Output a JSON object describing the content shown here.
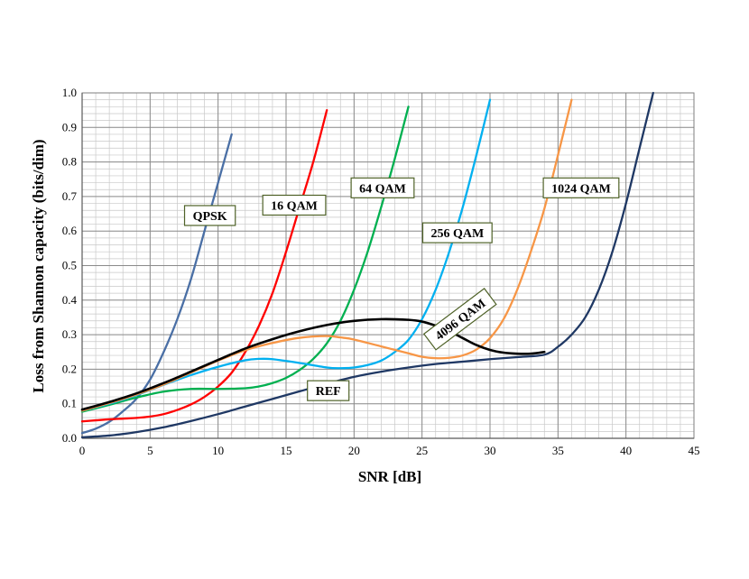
{
  "chart_data": {
    "type": "line",
    "title": "",
    "xlabel": "SNR [dB]",
    "ylabel": "Loss from Shannon capacity (bits/dim)",
    "xlim": [
      0,
      45
    ],
    "ylim": [
      0,
      1.0
    ],
    "x_ticks": [
      0,
      5,
      10,
      15,
      20,
      25,
      30,
      35,
      40,
      45
    ],
    "y_ticks": [
      "0.0",
      "0.1",
      "0.2",
      "0.3",
      "0.4",
      "0.5",
      "0.6",
      "0.7",
      "0.8",
      "0.9",
      "1.0"
    ],
    "x_minor_step": 1,
    "y_minor_step": 0.02,
    "grid": true,
    "series": [
      {
        "name": "REF",
        "color": "#1F3864",
        "x": [
          0,
          2,
          4,
          6,
          8,
          10,
          12,
          14,
          16,
          18,
          20,
          22,
          24,
          26,
          28,
          30,
          32,
          34,
          35,
          36,
          37,
          38,
          39,
          40,
          41,
          42
        ],
        "y": [
          0.003,
          0.008,
          0.018,
          0.032,
          0.05,
          0.07,
          0.092,
          0.114,
          0.136,
          0.158,
          0.178,
          0.193,
          0.205,
          0.215,
          0.222,
          0.229,
          0.235,
          0.242,
          0.265,
          0.3,
          0.35,
          0.43,
          0.54,
          0.68,
          0.84,
          1.0
        ]
      },
      {
        "name": "QPSK",
        "color": "#4A6FA5",
        "x": [
          0,
          1,
          2,
          3,
          4,
          5,
          6,
          7,
          8,
          9,
          10,
          11
        ],
        "y": [
          0.015,
          0.028,
          0.048,
          0.078,
          0.115,
          0.17,
          0.25,
          0.345,
          0.46,
          0.6,
          0.74,
          0.88
        ]
      },
      {
        "name": "16 QAM",
        "color": "#FF0000",
        "x": [
          0,
          1,
          2,
          3,
          4,
          5,
          6,
          7,
          8,
          9,
          10,
          11,
          12,
          13,
          14,
          15,
          16,
          17,
          18
        ],
        "y": [
          0.049,
          0.052,
          0.055,
          0.057,
          0.059,
          0.063,
          0.07,
          0.082,
          0.098,
          0.12,
          0.15,
          0.19,
          0.25,
          0.325,
          0.42,
          0.54,
          0.67,
          0.8,
          0.95
        ]
      },
      {
        "name": "64 QAM",
        "color": "#00B050",
        "x": [
          0,
          2,
          4,
          6,
          8,
          10,
          12,
          13,
          14,
          15,
          16,
          17,
          18,
          19,
          20,
          21,
          22,
          23,
          24
        ],
        "y": [
          0.077,
          0.097,
          0.118,
          0.135,
          0.143,
          0.143,
          0.145,
          0.15,
          0.16,
          0.175,
          0.198,
          0.23,
          0.275,
          0.34,
          0.43,
          0.54,
          0.67,
          0.81,
          0.96
        ]
      },
      {
        "name": "256 QAM",
        "color": "#00B0F0",
        "x": [
          0,
          2,
          4,
          6,
          8,
          10,
          12,
          13,
          14,
          16,
          18,
          19,
          20,
          21,
          22,
          23,
          24,
          25,
          26,
          27,
          28,
          29,
          30
        ],
        "y": [
          0.08,
          0.1,
          0.125,
          0.155,
          0.183,
          0.207,
          0.226,
          0.23,
          0.229,
          0.218,
          0.205,
          0.203,
          0.205,
          0.212,
          0.225,
          0.25,
          0.285,
          0.345,
          0.43,
          0.54,
          0.67,
          0.82,
          0.98
        ]
      },
      {
        "name": "1024 QAM",
        "color": "#F79646",
        "x": [
          0,
          2,
          4,
          6,
          8,
          10,
          12,
          14,
          16,
          18,
          19,
          20,
          22,
          24,
          25,
          26,
          27,
          28,
          29,
          30,
          31,
          32,
          33,
          34,
          35,
          36
        ],
        "y": [
          0.08,
          0.102,
          0.127,
          0.156,
          0.19,
          0.225,
          0.255,
          0.276,
          0.291,
          0.296,
          0.292,
          0.286,
          0.266,
          0.246,
          0.236,
          0.232,
          0.233,
          0.24,
          0.257,
          0.29,
          0.345,
          0.43,
          0.54,
          0.665,
          0.82,
          0.98
        ]
      },
      {
        "name": "4096 QAM",
        "color": "#000000",
        "x": [
          0,
          2,
          4,
          6,
          8,
          10,
          12,
          14,
          16,
          18,
          20,
          22,
          24,
          25,
          26,
          27,
          28,
          29,
          30,
          31,
          32,
          33,
          34
        ],
        "y": [
          0.083,
          0.105,
          0.13,
          0.16,
          0.193,
          0.227,
          0.26,
          0.287,
          0.31,
          0.328,
          0.34,
          0.345,
          0.343,
          0.338,
          0.326,
          0.31,
          0.29,
          0.27,
          0.256,
          0.248,
          0.245,
          0.245,
          0.25
        ]
      }
    ],
    "annotations": [
      {
        "text": "QPSK",
        "x": 9.4,
        "y": 0.645,
        "angle": 0
      },
      {
        "text": "16 QAM",
        "x": 15.6,
        "y": 0.675,
        "angle": 0
      },
      {
        "text": "64 QAM",
        "x": 22.1,
        "y": 0.725,
        "angle": 0
      },
      {
        "text": "256 QAM",
        "x": 27.6,
        "y": 0.595,
        "angle": 0
      },
      {
        "text": "1024 QAM",
        "x": 36.7,
        "y": 0.725,
        "angle": 0
      },
      {
        "text": "4096 QAM",
        "x": 27.8,
        "y": 0.345,
        "angle": -37
      },
      {
        "text": "REF",
        "x": 18.1,
        "y": 0.138,
        "angle": 0
      }
    ]
  }
}
